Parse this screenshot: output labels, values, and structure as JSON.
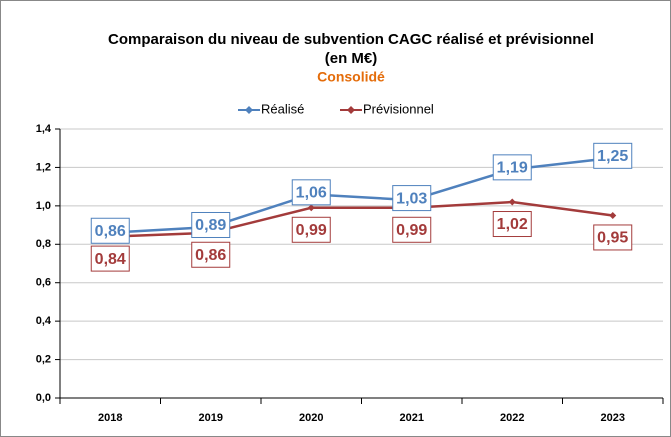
{
  "chart_data": {
    "type": "line",
    "title": "Comparaison du niveau de subvention CAGC réalisé et prévisionnel",
    "unit": "(en M€)",
    "subtitle": "Consolidé",
    "categories": [
      "2018",
      "2019",
      "2020",
      "2021",
      "2022",
      "2023"
    ],
    "series": [
      {
        "name": "Réalisé",
        "color": "#4f81bd",
        "values": [
          0.86,
          0.89,
          1.06,
          1.03,
          1.19,
          1.25
        ],
        "value_labels": [
          "0,86",
          "0,89",
          "1,06",
          "1,03",
          "1,19",
          "1,25"
        ]
      },
      {
        "name": "Prévisionnel",
        "color": "#a33b3b",
        "values": [
          0.84,
          0.86,
          0.99,
          0.99,
          1.02,
          0.95
        ],
        "value_labels": [
          "0,84",
          "0,86",
          "0,99",
          "0,99",
          "1,02",
          "0,95"
        ]
      }
    ],
    "ylim": [
      0,
      1.4
    ],
    "yticks": [
      {
        "value": 0,
        "label": "0,0"
      },
      {
        "value": 0.2,
        "label": "0,2"
      },
      {
        "value": 0.4,
        "label": "0,4"
      },
      {
        "value": 0.6,
        "label": "0,6"
      },
      {
        "value": 0.8,
        "label": "0,8"
      },
      {
        "value": 1.0,
        "label": "1,0"
      },
      {
        "value": 1.2,
        "label": "1,2"
      },
      {
        "value": 1.4,
        "label": "1,4"
      }
    ],
    "grid": true,
    "legend": "top"
  }
}
